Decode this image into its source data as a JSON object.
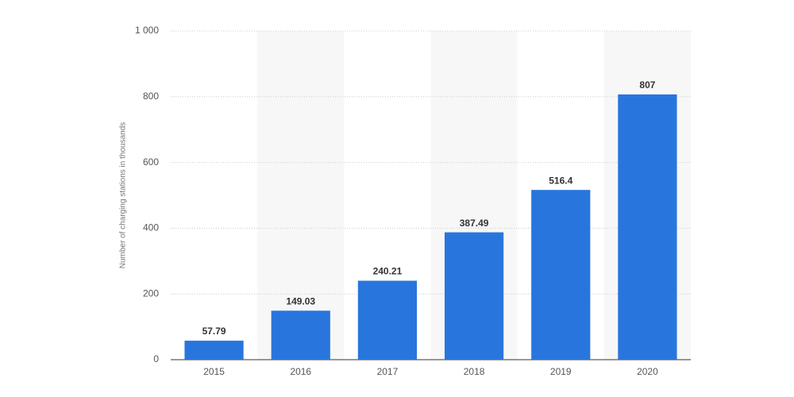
{
  "chart_data": {
    "type": "bar",
    "y_label": "Number of charging stations in thousands",
    "categories": [
      "2015",
      "2016",
      "2017",
      "2018",
      "2019",
      "2020"
    ],
    "values": [
      57.79,
      149.03,
      240.21,
      387.49,
      516.4,
      807
    ],
    "color": "#2876dd",
    "ylim": [
      0,
      1000
    ],
    "yticks": [
      0,
      200,
      400,
      600,
      800,
      {
        "value": 1000,
        "label": "1 000"
      }
    ],
    "grid": true
  }
}
